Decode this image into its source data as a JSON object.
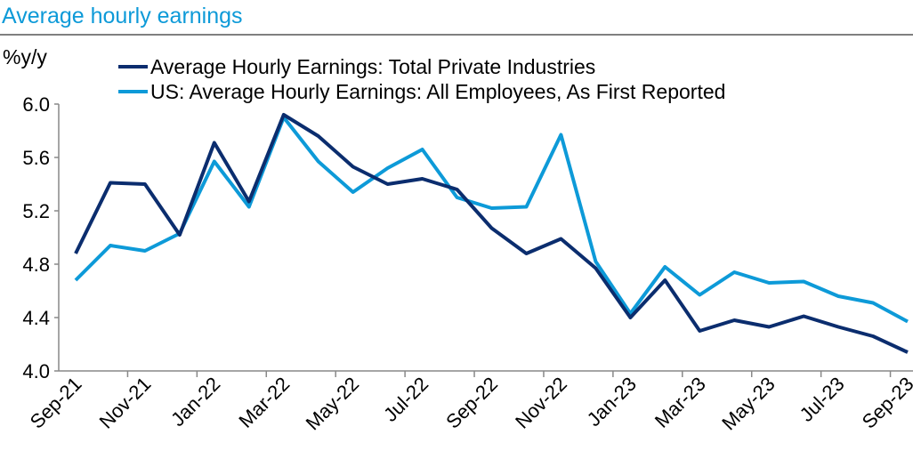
{
  "chart_data": {
    "type": "line",
    "title": "Average hourly earnings",
    "ylabel": "%y/y",
    "xlabel": "",
    "ylim": [
      4.0,
      6.0
    ],
    "yticks": [
      "4.0",
      "4.4",
      "4.8",
      "5.2",
      "5.6",
      "6.0"
    ],
    "ytick_values": [
      4.0,
      4.4,
      4.8,
      5.2,
      5.6,
      6.0
    ],
    "categories": [
      "Sep-21",
      "Oct-21",
      "Nov-21",
      "Dec-21",
      "Jan-22",
      "Feb-22",
      "Mar-22",
      "Apr-22",
      "May-22",
      "Jun-22",
      "Jul-22",
      "Aug-22",
      "Sep-22",
      "Oct-22",
      "Nov-22",
      "Dec-22",
      "Jan-23",
      "Feb-23",
      "Mar-23",
      "Apr-23",
      "May-23",
      "Jun-23",
      "Jul-23",
      "Aug-23",
      "Sep-23"
    ],
    "xtick_labels": [
      "Sep-21",
      "Nov-21",
      "Jan-22",
      "Mar-22",
      "May-22",
      "Jul-22",
      "Sep-22",
      "Nov-22",
      "Jan-23",
      "Mar-23",
      "May-23",
      "Jul-23",
      "Sep-23"
    ],
    "grid": false,
    "legend_position": "top-left",
    "series": [
      {
        "name": "Average Hourly Earnings: Total Private Industries",
        "color": "#0b2d6e",
        "values": [
          4.88,
          5.41,
          5.4,
          5.02,
          5.71,
          5.27,
          5.92,
          5.76,
          5.53,
          5.4,
          5.44,
          5.36,
          5.07,
          4.88,
          4.99,
          4.77,
          4.4,
          4.68,
          4.3,
          4.38,
          4.33,
          4.41,
          4.33,
          4.26,
          4.14
        ]
      },
      {
        "name": "US: Average Hourly Earnings: All Employees, As First Reported",
        "color": "#0d9ad8",
        "values": [
          4.68,
          4.94,
          4.9,
          5.03,
          5.57,
          5.23,
          5.9,
          5.57,
          5.34,
          5.52,
          5.66,
          5.3,
          5.22,
          5.23,
          5.77,
          4.82,
          4.43,
          4.78,
          4.57,
          4.74,
          4.66,
          4.67,
          4.56,
          4.51,
          4.37
        ]
      }
    ]
  },
  "colors": {
    "title": "#0d9ad8",
    "axis": "#888888",
    "text": "#000000"
  }
}
